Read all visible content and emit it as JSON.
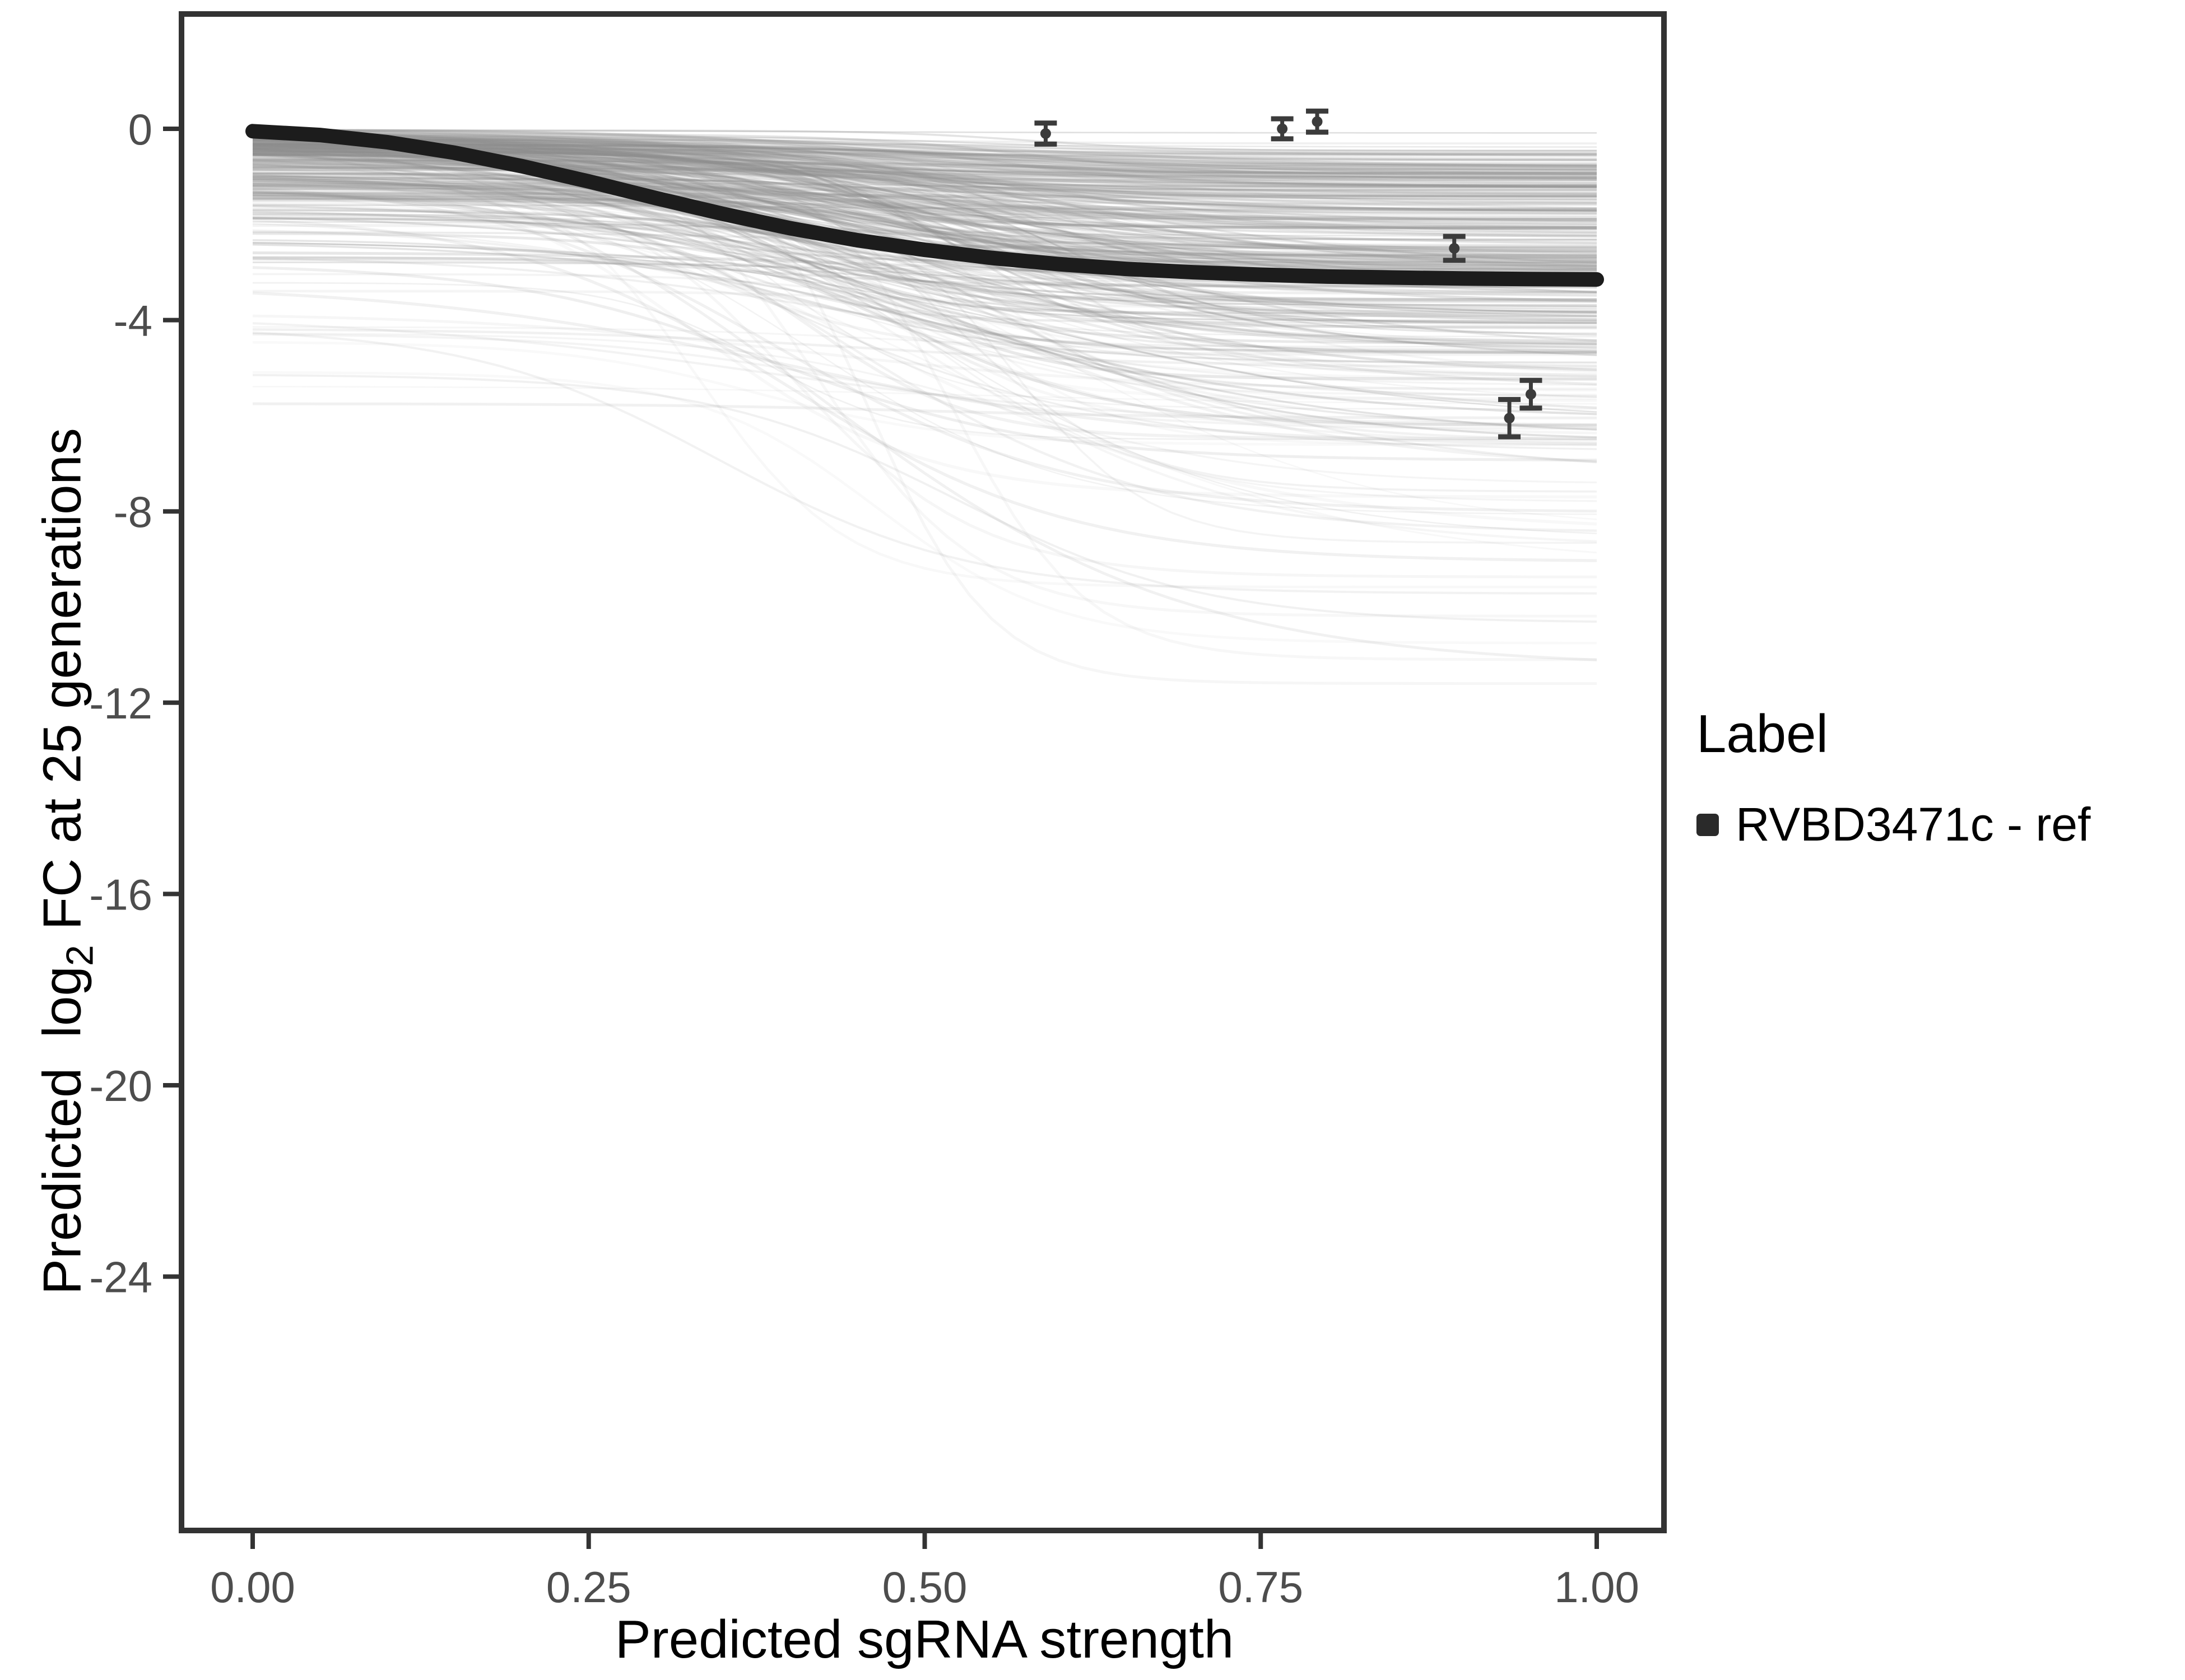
{
  "chart_data": {
    "type": "line",
    "title": "",
    "xlabel": "Predicted sgRNA strength",
    "ylabel": "Predicted log2 FC at 25 generations",
    "ylabel_parts": {
      "pre": "Predicted  log",
      "sub": "2",
      "post": " FC at 25 generations"
    },
    "xlim": [
      -0.055,
      1.05
    ],
    "ylim": [
      -29.3,
      2.4
    ],
    "grid": false,
    "x_ticks": [
      {
        "v": 0.0,
        "label": "0.00"
      },
      {
        "v": 0.25,
        "label": "0.25"
      },
      {
        "v": 0.5,
        "label": "0.50"
      },
      {
        "v": 0.75,
        "label": "0.75"
      },
      {
        "v": 1.0,
        "label": "1.00"
      }
    ],
    "y_ticks": [
      {
        "v": 0,
        "label": "0"
      },
      {
        "v": -4,
        "label": "-4"
      },
      {
        "v": -8,
        "label": "-8"
      },
      {
        "v": -12,
        "label": "-12"
      },
      {
        "v": -16,
        "label": "-16"
      },
      {
        "v": -20,
        "label": "-20"
      },
      {
        "v": -24,
        "label": "-24"
      }
    ],
    "legend": {
      "title": "Label",
      "position": "right",
      "items": [
        {
          "label": "RVBD3471c - ref",
          "color": "#2a2a2a"
        }
      ]
    },
    "reference_curve": {
      "name": "RVBD3471c - ref",
      "color": "#1c1c1c",
      "width": 26,
      "points": [
        [
          0.0,
          -0.05
        ],
        [
          0.05,
          -0.13
        ],
        [
          0.1,
          -0.28
        ],
        [
          0.15,
          -0.5
        ],
        [
          0.2,
          -0.78
        ],
        [
          0.25,
          -1.1
        ],
        [
          0.3,
          -1.45
        ],
        [
          0.35,
          -1.78
        ],
        [
          0.4,
          -2.08
        ],
        [
          0.45,
          -2.33
        ],
        [
          0.5,
          -2.53
        ],
        [
          0.55,
          -2.7
        ],
        [
          0.6,
          -2.83
        ],
        [
          0.65,
          -2.93
        ],
        [
          0.7,
          -3.0
        ],
        [
          0.75,
          -3.05
        ],
        [
          0.8,
          -3.09
        ],
        [
          0.85,
          -3.11
        ],
        [
          0.9,
          -3.13
        ],
        [
          0.95,
          -3.14
        ],
        [
          1.0,
          -3.15
        ]
      ]
    },
    "measured_points": [
      {
        "x": 0.59,
        "y": -0.1,
        "err": 0.22
      },
      {
        "x": 0.766,
        "y": 0.0,
        "err": 0.21
      },
      {
        "x": 0.792,
        "y": 0.15,
        "err": 0.22
      },
      {
        "x": 0.894,
        "y": -2.5,
        "err": 0.25
      },
      {
        "x": 0.935,
        "y": -6.05,
        "err": 0.39
      },
      {
        "x": 0.951,
        "y": -5.55,
        "err": 0.29
      }
    ],
    "ensemble": {
      "count": 330,
      "seed": 7,
      "stroke": "#8f8f8f",
      "samples_per_curve": 60,
      "min_final": -11.8,
      "intercept_buckets": [
        [
          0.55,
          -0.02,
          -0.55
        ],
        [
          0.8,
          -0.55,
          -1.5
        ],
        [
          0.93,
          -1.5,
          -2.8
        ],
        [
          0.985,
          -2.8,
          -4.4
        ],
        [
          1.0,
          -4.4,
          -5.7
        ]
      ],
      "drop_buckets": [
        [
          0.3,
          0.05,
          0.9
        ],
        [
          0.75,
          0.8,
          3.4
        ],
        [
          0.92,
          3.0,
          5.5
        ],
        [
          0.985,
          5.0,
          9.0
        ],
        [
          1.0,
          8.0,
          11.5
        ]
      ],
      "midpoint_range": [
        0.32,
        0.62
      ],
      "slope_range": [
        0.05,
        0.15
      ],
      "alpha_range": [
        0.1,
        0.28
      ],
      "width_range": [
        2.5,
        5.5
      ]
    },
    "feature_curves": [
      {
        "b0": -5.75,
        "drop": 0.3,
        "mid": 0.5,
        "slope": 0.1,
        "alpha": 0.13,
        "width": 5
      },
      {
        "b0": -0.3,
        "drop": 11.3,
        "mid": 0.46,
        "slope": 0.045,
        "alpha": 0.08,
        "width": 5
      },
      {
        "b0": -0.5,
        "drop": 10.6,
        "mid": 0.52,
        "slope": 0.05,
        "alpha": 0.07,
        "width": 5
      },
      {
        "b0": -0.2,
        "drop": 10.0,
        "mid": 0.42,
        "slope": 0.06,
        "alpha": 0.07,
        "width": 5
      },
      {
        "b0": -1.0,
        "drop": 8.4,
        "mid": 0.4,
        "slope": 0.07,
        "alpha": 0.08,
        "width": 5
      },
      {
        "b0": -4.3,
        "drop": 2.0,
        "mid": 0.45,
        "slope": 0.1,
        "alpha": 0.1,
        "width": 4
      }
    ],
    "style": {
      "panel_border_color": "#333333",
      "panel_border_width": 10,
      "tick_color": "#333333",
      "tick_length": 28,
      "tick_width": 8,
      "tick_label_color": "#4d4d4d",
      "tick_label_size": 78,
      "errorbar_color": "#3b3b3b",
      "errorbar_line_width": 7,
      "errorbar_cap_width": 40,
      "point_radius": 9.5,
      "background": "#ffffff"
    }
  }
}
